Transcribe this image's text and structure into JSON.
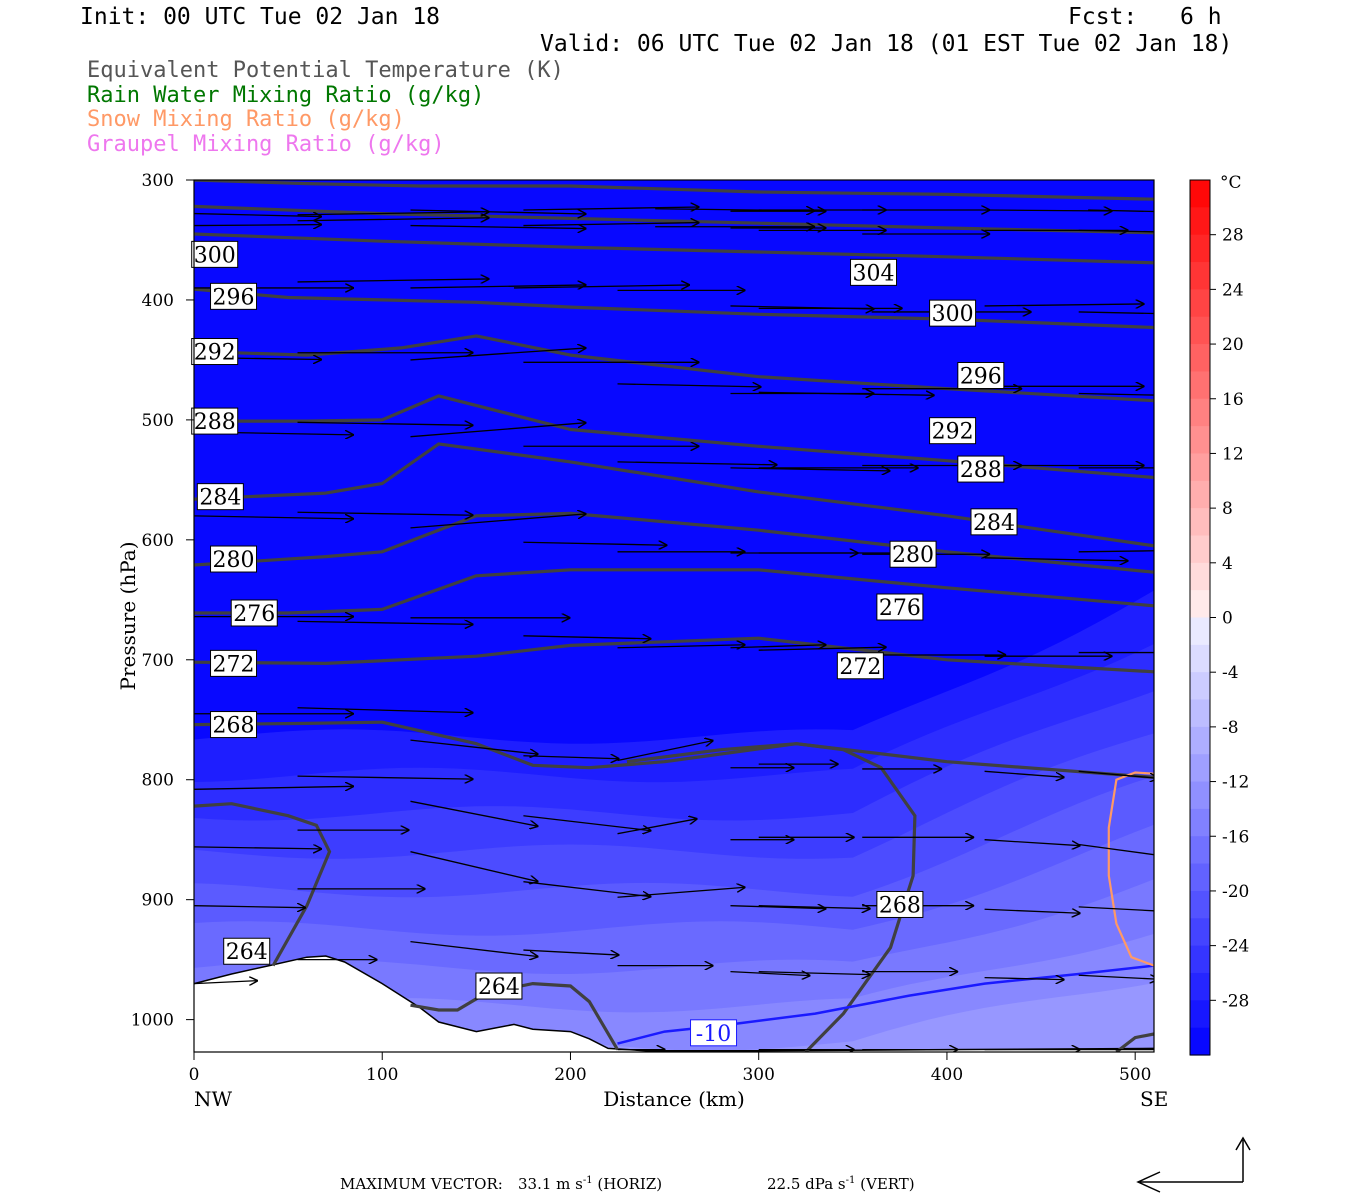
{
  "header": {
    "init": "Init: 00 UTC Tue 02 Jan 18",
    "fcst_label": "Fcst:",
    "fcst_value": "6 h",
    "valid": "Valid: 06 UTC Tue 02 Jan 18 (01 EST Tue 02 Jan 18)"
  },
  "legend": [
    {
      "text": "Equivalent Potential Temperature (K)",
      "color": "#555555"
    },
    {
      "text": "Rain Water Mixing Ratio (g/kg)",
      "color": "#007700"
    },
    {
      "text": "Snow Mixing Ratio (g/kg)",
      "color": "#ff9966"
    },
    {
      "text": "Graupel Mixing Ratio (g/kg)",
      "color": "#ee77ee"
    }
  ],
  "footer": {
    "label": "MAXIMUM VECTOR:",
    "horiz_value": "33.1 m s",
    "horiz_exp": "-1",
    "horiz_tag": "(HORIZ)",
    "vert_value": "22.5 dPa s",
    "vert_exp": "-1",
    "vert_tag": "(VERT)"
  },
  "chart_data": {
    "type": "cross-section",
    "xlabel": "Distance (km)",
    "ylabel": "Pressure (hPa)",
    "xlim": [
      0,
      510
    ],
    "ylim": [
      1027,
      300
    ],
    "x_ticks": [
      0,
      100,
      200,
      300,
      400,
      500
    ],
    "y_ticks": [
      300,
      400,
      500,
      600,
      700,
      800,
      900,
      1000
    ],
    "x_end_labels": {
      "left": "NW",
      "right": "SE"
    },
    "colorbar": {
      "unit": "°C",
      "tick_labels": [
        "28",
        "24",
        "20",
        "16",
        "12",
        "8",
        "4",
        "0",
        "-4",
        "-8",
        "-12",
        "-16",
        "-20",
        "-24",
        "-28"
      ],
      "range": [
        -32,
        32
      ],
      "step": 2
    },
    "theta_e_contour_labels": [
      {
        "value": "300",
        "x": 11,
        "p": 362
      },
      {
        "value": "296",
        "x": 21,
        "p": 397
      },
      {
        "value": "292",
        "x": 11,
        "p": 443
      },
      {
        "value": "288",
        "x": 11,
        "p": 501
      },
      {
        "value": "284",
        "x": 14,
        "p": 564
      },
      {
        "value": "280",
        "x": 21,
        "p": 616
      },
      {
        "value": "276",
        "x": 32,
        "p": 661
      },
      {
        "value": "272",
        "x": 21,
        "p": 703
      },
      {
        "value": "268",
        "x": 21,
        "p": 754
      },
      {
        "value": "264",
        "x": 28,
        "p": 943
      },
      {
        "value": "264",
        "x": 162,
        "p": 972
      },
      {
        "value": "304",
        "x": 361,
        "p": 377
      },
      {
        "value": "300",
        "x": 403,
        "p": 411
      },
      {
        "value": "296",
        "x": 418,
        "p": 463
      },
      {
        "value": "292",
        "x": 403,
        "p": 509
      },
      {
        "value": "288",
        "x": 418,
        "p": 541
      },
      {
        "value": "284",
        "x": 425,
        "p": 585
      },
      {
        "value": "280",
        "x": 382,
        "p": 612
      },
      {
        "value": "276",
        "x": 375,
        "p": 656
      },
      {
        "value": "272",
        "x": 354,
        "p": 705
      },
      {
        "value": "268",
        "x": 375,
        "p": 904
      }
    ],
    "temperature_contour_labels": [
      {
        "value": "-10",
        "x": 276,
        "p": 1011
      }
    ],
    "theta_e_lines": [
      [
        [
          0,
          322
        ],
        [
          100,
          328
        ],
        [
          200,
          332
        ],
        [
          300,
          336
        ],
        [
          400,
          340
        ],
        [
          510,
          344
        ]
      ],
      [
        [
          0,
          345
        ],
        [
          100,
          351
        ],
        [
          200,
          356
        ],
        [
          300,
          360
        ],
        [
          400,
          364
        ],
        [
          510,
          369
        ]
      ],
      [
        [
          0,
          391
        ],
        [
          50,
          398
        ],
        [
          100,
          400
        ],
        [
          150,
          402
        ],
        [
          200,
          406
        ],
        [
          300,
          412
        ],
        [
          400,
          416
        ],
        [
          510,
          423
        ]
      ],
      [
        [
          0,
          443
        ],
        [
          60,
          446
        ],
        [
          110,
          440
        ],
        [
          150,
          430
        ],
        [
          200,
          446
        ],
        [
          300,
          464
        ],
        [
          400,
          474
        ],
        [
          510,
          484
        ]
      ],
      [
        [
          0,
          501
        ],
        [
          60,
          501
        ],
        [
          100,
          500
        ],
        [
          130,
          480
        ],
        [
          200,
          508
        ],
        [
          300,
          522
        ],
        [
          400,
          534
        ],
        [
          510,
          548
        ]
      ],
      [
        [
          0,
          566
        ],
        [
          70,
          561
        ],
        [
          100,
          553
        ],
        [
          130,
          520
        ],
        [
          200,
          535
        ],
        [
          300,
          560
        ],
        [
          400,
          580
        ],
        [
          510,
          605
        ]
      ],
      [
        [
          0,
          621
        ],
        [
          70,
          614
        ],
        [
          100,
          610
        ],
        [
          150,
          580
        ],
        [
          200,
          578
        ],
        [
          300,
          592
        ],
        [
          400,
          610
        ],
        [
          510,
          627
        ]
      ],
      [
        [
          0,
          661
        ],
        [
          50,
          661
        ],
        [
          100,
          658
        ],
        [
          150,
          630
        ],
        [
          200,
          625
        ],
        [
          300,
          625
        ],
        [
          400,
          640
        ],
        [
          510,
          655
        ]
      ],
      [
        [
          0,
          702
        ],
        [
          70,
          703
        ],
        [
          150,
          697
        ],
        [
          200,
          688
        ],
        [
          300,
          682
        ],
        [
          400,
          700
        ],
        [
          510,
          710
        ]
      ],
      [
        [
          0,
          754
        ],
        [
          60,
          753
        ],
        [
          100,
          752
        ],
        [
          150,
          770
        ],
        [
          180,
          788
        ],
        [
          210,
          790
        ],
        [
          250,
          785
        ],
        [
          320,
          770
        ],
        [
          400,
          785
        ],
        [
          510,
          798
        ]
      ]
    ],
    "rain_water_max_gkg": null,
    "snow_mixing_present": true,
    "temperature_field_note": "filled color = temperature (°C); coldest near top"
  }
}
